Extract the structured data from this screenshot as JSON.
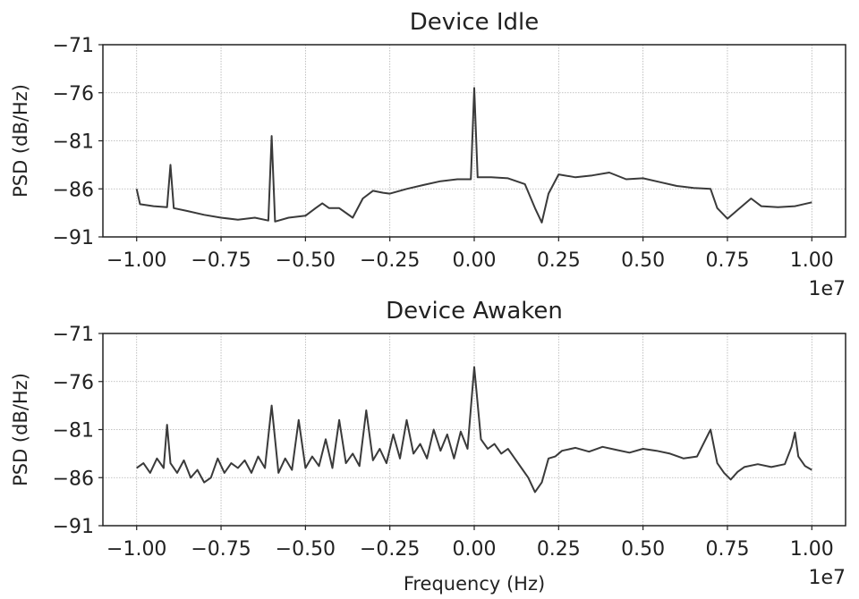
{
  "chart_data": [
    {
      "type": "line",
      "title": "Device Idle",
      "xlabel": "",
      "ylabel": "PSD (dB/Hz)",
      "x_offset_label": "1e7",
      "xlim": [
        -1.1,
        1.1
      ],
      "ylim": [
        -91,
        -71
      ],
      "xticks": [
        -1.0,
        -0.75,
        -0.5,
        -0.25,
        0.0,
        0.25,
        0.5,
        0.75,
        1.0
      ],
      "xtick_labels": [
        "−1.00",
        "−0.75",
        "−0.50",
        "−0.25",
        "0.00",
        "0.25",
        "0.50",
        "0.75",
        "1.00"
      ],
      "yticks": [
        -91,
        -86,
        -81,
        -76,
        -71
      ],
      "ytick_labels": [
        "−91",
        "−86",
        "−81",
        "−76",
        "−71"
      ],
      "grid": true,
      "line_color": "#3a3a3a",
      "series": [
        {
          "x": [
            -1.0,
            -0.99,
            -0.95,
            -0.91,
            -0.9,
            -0.89,
            -0.85,
            -0.8,
            -0.75,
            -0.7,
            -0.65,
            -0.61,
            -0.6,
            -0.59,
            -0.55,
            -0.5,
            -0.47,
            -0.45,
            -0.43,
            -0.4,
            -0.36,
            -0.33,
            -0.3,
            -0.27,
            -0.25,
            -0.2,
            -0.15,
            -0.1,
            -0.05,
            -0.01,
            0.0,
            0.01,
            0.05,
            0.1,
            0.15,
            0.18,
            0.2,
            0.22,
            0.25,
            0.3,
            0.35,
            0.4,
            0.45,
            0.5,
            0.55,
            0.6,
            0.65,
            0.7,
            0.72,
            0.75,
            0.78,
            0.82,
            0.85,
            0.9,
            0.95,
            1.0
          ],
          "y": [
            -86,
            -87.6,
            -87.8,
            -87.9,
            -83.5,
            -88,
            -88.3,
            -88.7,
            -89,
            -89.2,
            -89,
            -89.3,
            -80.5,
            -89.4,
            -89,
            -88.8,
            -88,
            -87.5,
            -88,
            -88,
            -89,
            -87,
            -86.2,
            -86.4,
            -86.5,
            -86,
            -85.6,
            -85.2,
            -85,
            -85,
            -75.5,
            -84.8,
            -84.8,
            -84.9,
            -85.5,
            -88,
            -89.5,
            -86.5,
            -84.5,
            -84.8,
            -84.6,
            -84.3,
            -85,
            -84.9,
            -85.3,
            -85.7,
            -85.9,
            -86,
            -88,
            -89.1,
            -88.2,
            -87,
            -87.8,
            -87.9,
            -87.8,
            -87.4
          ]
        }
      ]
    },
    {
      "type": "line",
      "title": "Device Awaken",
      "xlabel": "Frequency (Hz)",
      "ylabel": "PSD (dB/Hz)",
      "x_offset_label": "1e7",
      "xlim": [
        -1.1,
        1.1
      ],
      "ylim": [
        -91,
        -71
      ],
      "xticks": [
        -1.0,
        -0.75,
        -0.5,
        -0.25,
        0.0,
        0.25,
        0.5,
        0.75,
        1.0
      ],
      "xtick_labels": [
        "−1.00",
        "−0.75",
        "−0.50",
        "−0.25",
        "0.00",
        "0.25",
        "0.50",
        "0.75",
        "1.00"
      ],
      "yticks": [
        -91,
        -86,
        -81,
        -76,
        -71
      ],
      "ytick_labels": [
        "−91",
        "−86",
        "−81",
        "−76",
        "−71"
      ],
      "grid": true,
      "line_color": "#3a3a3a",
      "series": [
        {
          "x": [
            -1.0,
            -0.98,
            -0.96,
            -0.94,
            -0.92,
            -0.91,
            -0.9,
            -0.88,
            -0.86,
            -0.84,
            -0.82,
            -0.8,
            -0.78,
            -0.76,
            -0.74,
            -0.72,
            -0.7,
            -0.68,
            -0.66,
            -0.64,
            -0.62,
            -0.6,
            -0.58,
            -0.56,
            -0.54,
            -0.52,
            -0.5,
            -0.48,
            -0.46,
            -0.44,
            -0.42,
            -0.4,
            -0.38,
            -0.36,
            -0.34,
            -0.32,
            -0.3,
            -0.28,
            -0.26,
            -0.24,
            -0.22,
            -0.2,
            -0.18,
            -0.16,
            -0.14,
            -0.12,
            -0.1,
            -0.08,
            -0.06,
            -0.04,
            -0.02,
            0.0,
            0.02,
            0.04,
            0.06,
            0.08,
            0.1,
            0.12,
            0.14,
            0.16,
            0.18,
            0.2,
            0.22,
            0.24,
            0.26,
            0.3,
            0.34,
            0.38,
            0.42,
            0.46,
            0.5,
            0.54,
            0.58,
            0.62,
            0.66,
            0.7,
            0.72,
            0.74,
            0.76,
            0.78,
            0.8,
            0.84,
            0.88,
            0.92,
            0.94,
            0.95,
            0.96,
            0.98,
            1.0
          ],
          "y": [
            -85,
            -84.5,
            -85.5,
            -84,
            -85,
            -80.5,
            -84.5,
            -85.5,
            -84.2,
            -86,
            -85.2,
            -86.5,
            -86,
            -84,
            -85.5,
            -84.5,
            -85,
            -84.2,
            -85.5,
            -83.8,
            -85,
            -78.5,
            -85.5,
            -84,
            -85.2,
            -80,
            -85,
            -83.8,
            -84.8,
            -82,
            -85,
            -80,
            -84.5,
            -83.5,
            -84.8,
            -79,
            -84.2,
            -83,
            -84.5,
            -81.5,
            -84,
            -80,
            -83.5,
            -82.5,
            -84,
            -81,
            -83.2,
            -81.5,
            -84,
            -81.2,
            -83,
            -74.5,
            -82,
            -83,
            -82.5,
            -83.5,
            -83,
            -84,
            -85,
            -86,
            -87.5,
            -86.5,
            -84,
            -83.8,
            -83.2,
            -82.9,
            -83.3,
            -82.8,
            -83.1,
            -83.4,
            -83,
            -83.2,
            -83.5,
            -84,
            -83.8,
            -81,
            -84.5,
            -85.5,
            -86.2,
            -85.4,
            -84.9,
            -84.6,
            -84.9,
            -84.6,
            -82.8,
            -81.3,
            -83.8,
            -84.8,
            -85.2
          ]
        }
      ]
    }
  ]
}
